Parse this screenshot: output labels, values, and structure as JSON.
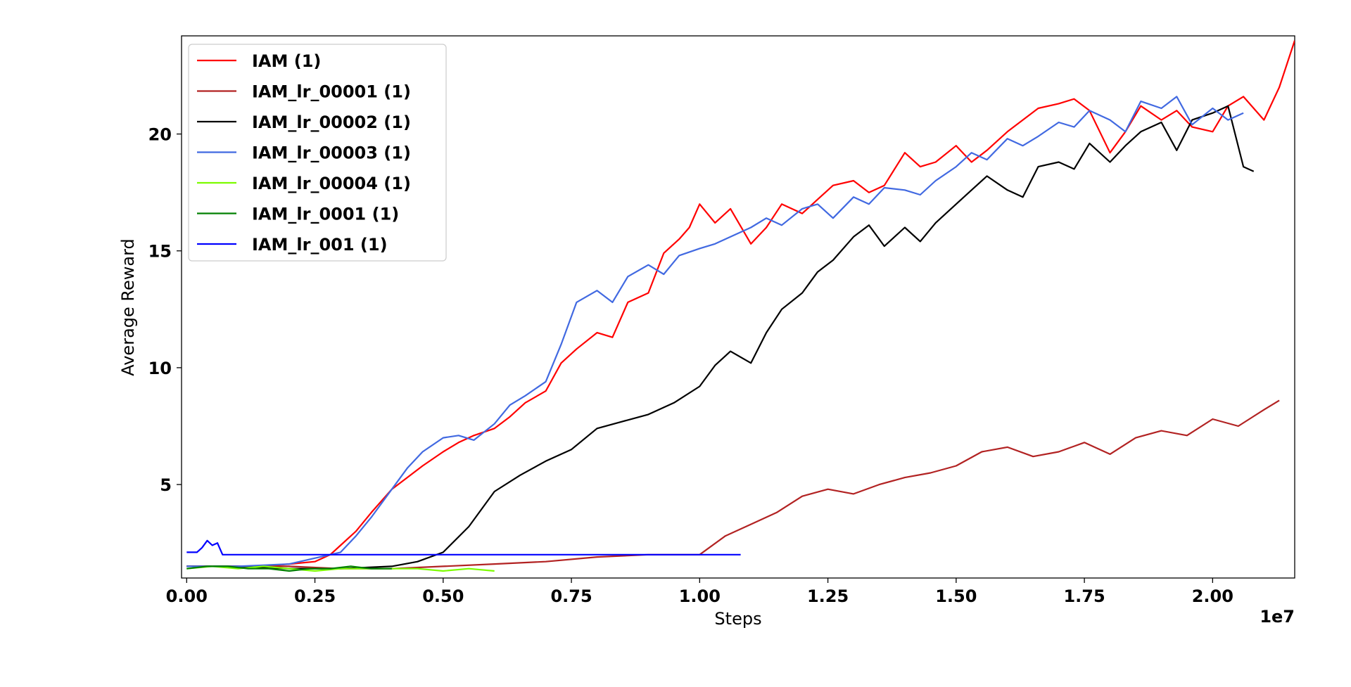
{
  "chart_data": {
    "type": "line",
    "xlabel": "Steps",
    "ylabel": "Average Reward",
    "x_offset_label": "1e7",
    "xlim": [
      -0.01,
      2.16
    ],
    "ylim": [
      1.0,
      24.2
    ],
    "x_ticks": [
      {
        "value": 0.0,
        "label": "0.00"
      },
      {
        "value": 0.25,
        "label": "0.25"
      },
      {
        "value": 0.5,
        "label": "0.50"
      },
      {
        "value": 0.75,
        "label": "0.75"
      },
      {
        "value": 1.0,
        "label": "1.00"
      },
      {
        "value": 1.25,
        "label": "1.25"
      },
      {
        "value": 1.5,
        "label": "1.50"
      },
      {
        "value": 1.75,
        "label": "1.75"
      },
      {
        "value": 2.0,
        "label": "2.00"
      }
    ],
    "y_ticks": [
      {
        "value": 5,
        "label": "5"
      },
      {
        "value": 10,
        "label": "10"
      },
      {
        "value": 15,
        "label": "15"
      },
      {
        "value": 20,
        "label": "20"
      }
    ],
    "grid": false,
    "legend_position": "top-left",
    "series": [
      {
        "name": "IAM (1)",
        "color": "#ff0000",
        "x": [
          0.0,
          0.05,
          0.1,
          0.15,
          0.2,
          0.25,
          0.28,
          0.3,
          0.33,
          0.36,
          0.4,
          0.43,
          0.46,
          0.5,
          0.53,
          0.56,
          0.6,
          0.63,
          0.66,
          0.7,
          0.73,
          0.76,
          0.8,
          0.83,
          0.86,
          0.9,
          0.93,
          0.96,
          0.98,
          1.0,
          1.03,
          1.06,
          1.1,
          1.13,
          1.16,
          1.2,
          1.23,
          1.26,
          1.3,
          1.33,
          1.36,
          1.4,
          1.43,
          1.46,
          1.5,
          1.53,
          1.56,
          1.6,
          1.63,
          1.66,
          1.7,
          1.73,
          1.76,
          1.8,
          1.83,
          1.86,
          1.9,
          1.93,
          1.96,
          2.0,
          2.03,
          2.06,
          2.1,
          2.13,
          2.16
        ],
        "y": [
          1.5,
          1.5,
          1.5,
          1.5,
          1.6,
          1.7,
          2.0,
          2.4,
          3.0,
          3.8,
          4.8,
          5.3,
          5.8,
          6.4,
          6.8,
          7.1,
          7.4,
          7.9,
          8.5,
          9.0,
          10.2,
          10.8,
          11.5,
          11.3,
          12.8,
          13.2,
          14.9,
          15.5,
          16.0,
          17.0,
          16.2,
          16.8,
          15.3,
          16.0,
          17.0,
          16.6,
          17.2,
          17.8,
          18.0,
          17.5,
          17.8,
          19.2,
          18.6,
          18.8,
          19.5,
          18.8,
          19.3,
          20.1,
          20.6,
          21.1,
          21.3,
          21.5,
          21.0,
          19.2,
          20.1,
          21.2,
          20.6,
          21.0,
          20.3,
          20.1,
          21.2,
          21.6,
          20.6,
          22.0,
          24.0
        ]
      },
      {
        "name": "IAM_lr_00001 (1)",
        "color": "#b22222",
        "x": [
          0.0,
          0.1,
          0.2,
          0.3,
          0.4,
          0.5,
          0.6,
          0.7,
          0.8,
          0.9,
          1.0,
          1.05,
          1.1,
          1.15,
          1.2,
          1.25,
          1.3,
          1.35,
          1.4,
          1.45,
          1.5,
          1.55,
          1.6,
          1.65,
          1.7,
          1.75,
          1.8,
          1.85,
          1.9,
          1.95,
          2.0,
          2.05,
          2.1,
          2.13
        ],
        "y": [
          1.5,
          1.5,
          1.5,
          1.4,
          1.4,
          1.5,
          1.6,
          1.7,
          1.9,
          2.0,
          2.0,
          2.8,
          3.3,
          3.8,
          4.5,
          4.8,
          4.6,
          5.0,
          5.3,
          5.5,
          5.8,
          6.4,
          6.6,
          6.2,
          6.4,
          6.8,
          6.3,
          7.0,
          7.3,
          7.1,
          7.8,
          7.5,
          8.2,
          8.6
        ]
      },
      {
        "name": "IAM_lr_00002 (1)",
        "color": "#000000",
        "x": [
          0.0,
          0.1,
          0.2,
          0.3,
          0.4,
          0.45,
          0.5,
          0.55,
          0.6,
          0.65,
          0.7,
          0.75,
          0.8,
          0.85,
          0.9,
          0.95,
          1.0,
          1.03,
          1.06,
          1.1,
          1.13,
          1.16,
          1.2,
          1.23,
          1.26,
          1.3,
          1.33,
          1.36,
          1.4,
          1.43,
          1.46,
          1.5,
          1.53,
          1.56,
          1.6,
          1.63,
          1.66,
          1.7,
          1.73,
          1.76,
          1.8,
          1.83,
          1.86,
          1.9,
          1.93,
          1.96,
          2.0,
          2.03,
          2.06,
          2.08
        ],
        "y": [
          1.5,
          1.5,
          1.4,
          1.4,
          1.5,
          1.7,
          2.1,
          3.2,
          4.7,
          5.4,
          6.0,
          6.5,
          7.4,
          7.7,
          8.0,
          8.5,
          9.2,
          10.1,
          10.7,
          10.2,
          11.5,
          12.5,
          13.2,
          14.1,
          14.6,
          15.6,
          16.1,
          15.2,
          16.0,
          15.4,
          16.2,
          17.0,
          17.6,
          18.2,
          17.6,
          17.3,
          18.6,
          18.8,
          18.5,
          19.6,
          18.8,
          19.5,
          20.1,
          20.5,
          19.3,
          20.6,
          20.9,
          21.2,
          18.6,
          18.4
        ]
      },
      {
        "name": "IAM_lr_00003 (1)",
        "color": "#4169e1",
        "x": [
          0.0,
          0.1,
          0.2,
          0.3,
          0.33,
          0.36,
          0.4,
          0.43,
          0.46,
          0.5,
          0.53,
          0.56,
          0.6,
          0.63,
          0.66,
          0.7,
          0.73,
          0.76,
          0.8,
          0.83,
          0.86,
          0.9,
          0.93,
          0.96,
          1.0,
          1.03,
          1.06,
          1.1,
          1.13,
          1.16,
          1.2,
          1.23,
          1.26,
          1.3,
          1.33,
          1.36,
          1.4,
          1.43,
          1.46,
          1.5,
          1.53,
          1.56,
          1.6,
          1.63,
          1.66,
          1.7,
          1.73,
          1.76,
          1.8,
          1.83,
          1.86,
          1.9,
          1.93,
          1.96,
          2.0,
          2.03,
          2.06
        ],
        "y": [
          1.5,
          1.5,
          1.6,
          2.1,
          2.8,
          3.6,
          4.8,
          5.7,
          6.4,
          7.0,
          7.1,
          6.9,
          7.6,
          8.4,
          8.8,
          9.4,
          11.0,
          12.8,
          13.3,
          12.8,
          13.9,
          14.4,
          14.0,
          14.8,
          15.1,
          15.3,
          15.6,
          16.0,
          16.4,
          16.1,
          16.8,
          17.0,
          16.4,
          17.3,
          17.0,
          17.7,
          17.6,
          17.4,
          18.0,
          18.6,
          19.2,
          18.9,
          19.8,
          19.5,
          19.9,
          20.5,
          20.3,
          21.0,
          20.6,
          20.1,
          21.4,
          21.1,
          21.6,
          20.4,
          21.1,
          20.6,
          20.9
        ]
      },
      {
        "name": "IAM_lr_00004 (1)",
        "color": "#7cfc00",
        "x": [
          0.0,
          0.05,
          0.1,
          0.15,
          0.2,
          0.25,
          0.3,
          0.35,
          0.4,
          0.45,
          0.5,
          0.55,
          0.6
        ],
        "y": [
          1.4,
          1.5,
          1.4,
          1.5,
          1.4,
          1.3,
          1.4,
          1.4,
          1.4,
          1.4,
          1.3,
          1.4,
          1.3
        ]
      },
      {
        "name": "IAM_lr_0001 (1)",
        "color": "#008000",
        "x": [
          0.0,
          0.04,
          0.08,
          0.12,
          0.16,
          0.2,
          0.24,
          0.28,
          0.32,
          0.36,
          0.4
        ],
        "y": [
          1.4,
          1.5,
          1.5,
          1.4,
          1.4,
          1.3,
          1.4,
          1.4,
          1.5,
          1.4,
          1.4
        ]
      },
      {
        "name": "IAM_lr_001 (1)",
        "color": "#0000ff",
        "x": [
          0.0,
          0.02,
          0.03,
          0.04,
          0.05,
          0.06,
          0.07,
          0.08,
          0.2,
          0.4,
          0.6,
          0.8,
          1.0,
          1.08
        ],
        "y": [
          2.1,
          2.1,
          2.3,
          2.6,
          2.4,
          2.5,
          2.0,
          2.0,
          2.0,
          2.0,
          2.0,
          2.0,
          2.0,
          2.0
        ]
      }
    ]
  }
}
